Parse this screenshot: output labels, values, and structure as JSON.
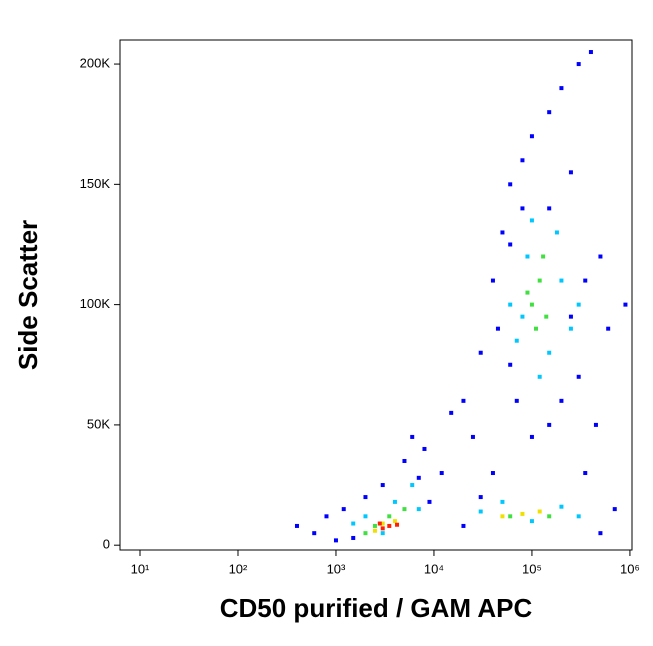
{
  "chart_data": {
    "type": "scatter",
    "xlabel": "CD50 purified / GAM APC",
    "ylabel": "Side Scatter",
    "xscale": "log",
    "xlim": [
      6.25,
      1050000
    ],
    "xticks": [
      {
        "value": 10,
        "label": "10¹"
      },
      {
        "value": 100,
        "label": "10²"
      },
      {
        "value": 1000,
        "label": "10³"
      },
      {
        "value": 10000,
        "label": "10⁴"
      },
      {
        "value": 100000,
        "label": "10⁵"
      },
      {
        "value": 1000000,
        "label": "10⁶"
      }
    ],
    "ylim": [
      -2000,
      210000
    ],
    "yticks": [
      0,
      {
        "value": 50000,
        "label": "50K"
      },
      {
        "value": 100000,
        "label": "100K"
      },
      {
        "value": 150000,
        "label": "150K"
      },
      {
        "value": 200000,
        "label": "200K"
      }
    ],
    "series": [
      {
        "color": "#0000ff",
        "x": [
          600,
          800,
          1200,
          1500,
          2000,
          5000,
          8000,
          12000,
          15000,
          20000,
          30000,
          25000,
          40000,
          50000,
          60000,
          80000,
          100000,
          150000,
          200000,
          300000,
          400000,
          500000,
          600000,
          450000,
          350000,
          700000,
          900000,
          30000,
          60000,
          80000,
          250000,
          300000,
          40000,
          45000,
          200000,
          150000,
          100000,
          3000,
          7000,
          9000,
          20000,
          400,
          1000,
          500000,
          150000,
          60000,
          70000,
          250000,
          350000,
          6000
        ],
        "values": [
          5000,
          12000,
          15000,
          3000,
          20000,
          35000,
          40000,
          30000,
          55000,
          60000,
          80000,
          45000,
          30000,
          130000,
          150000,
          160000,
          170000,
          180000,
          190000,
          200000,
          205000,
          120000,
          90000,
          50000,
          30000,
          15000,
          100000,
          20000,
          75000,
          140000,
          155000,
          70000,
          110000,
          90000,
          60000,
          50000,
          45000,
          25000,
          28000,
          18000,
          8000,
          8000,
          2000,
          5000,
          140000,
          125000,
          60000,
          95000,
          110000,
          45000
        ]
      },
      {
        "color": "#00c8ff",
        "x": [
          2000,
          4000,
          6000,
          3000,
          1500,
          7000,
          30000,
          50000,
          100000,
          200000,
          300000,
          70000,
          90000,
          150000,
          200000,
          180000,
          60000,
          250000,
          120000,
          100000,
          80000,
          300000
        ],
        "values": [
          12000,
          18000,
          25000,
          5000,
          9000,
          15000,
          14000,
          18000,
          10000,
          16000,
          12000,
          85000,
          120000,
          80000,
          110000,
          130000,
          100000,
          90000,
          70000,
          135000,
          95000,
          100000
        ]
      },
      {
        "color": "#40e040",
        "x": [
          2500,
          3500,
          5000,
          2000,
          60000,
          150000,
          100000,
          120000,
          90000,
          140000,
          110000,
          130000
        ],
        "values": [
          8000,
          12000,
          15000,
          5000,
          12000,
          12000,
          100000,
          110000,
          105000,
          95000,
          90000,
          120000
        ]
      },
      {
        "color": "#f0e000",
        "x": [
          3000,
          4000,
          2500,
          80000,
          120000,
          50000
        ],
        "values": [
          9000,
          10000,
          6000,
          13000,
          14000,
          12000
        ]
      },
      {
        "color": "#ff2000",
        "x": [
          3000,
          3500,
          2800,
          4200
        ],
        "values": [
          7000,
          8000,
          9000,
          8500
        ]
      }
    ]
  }
}
